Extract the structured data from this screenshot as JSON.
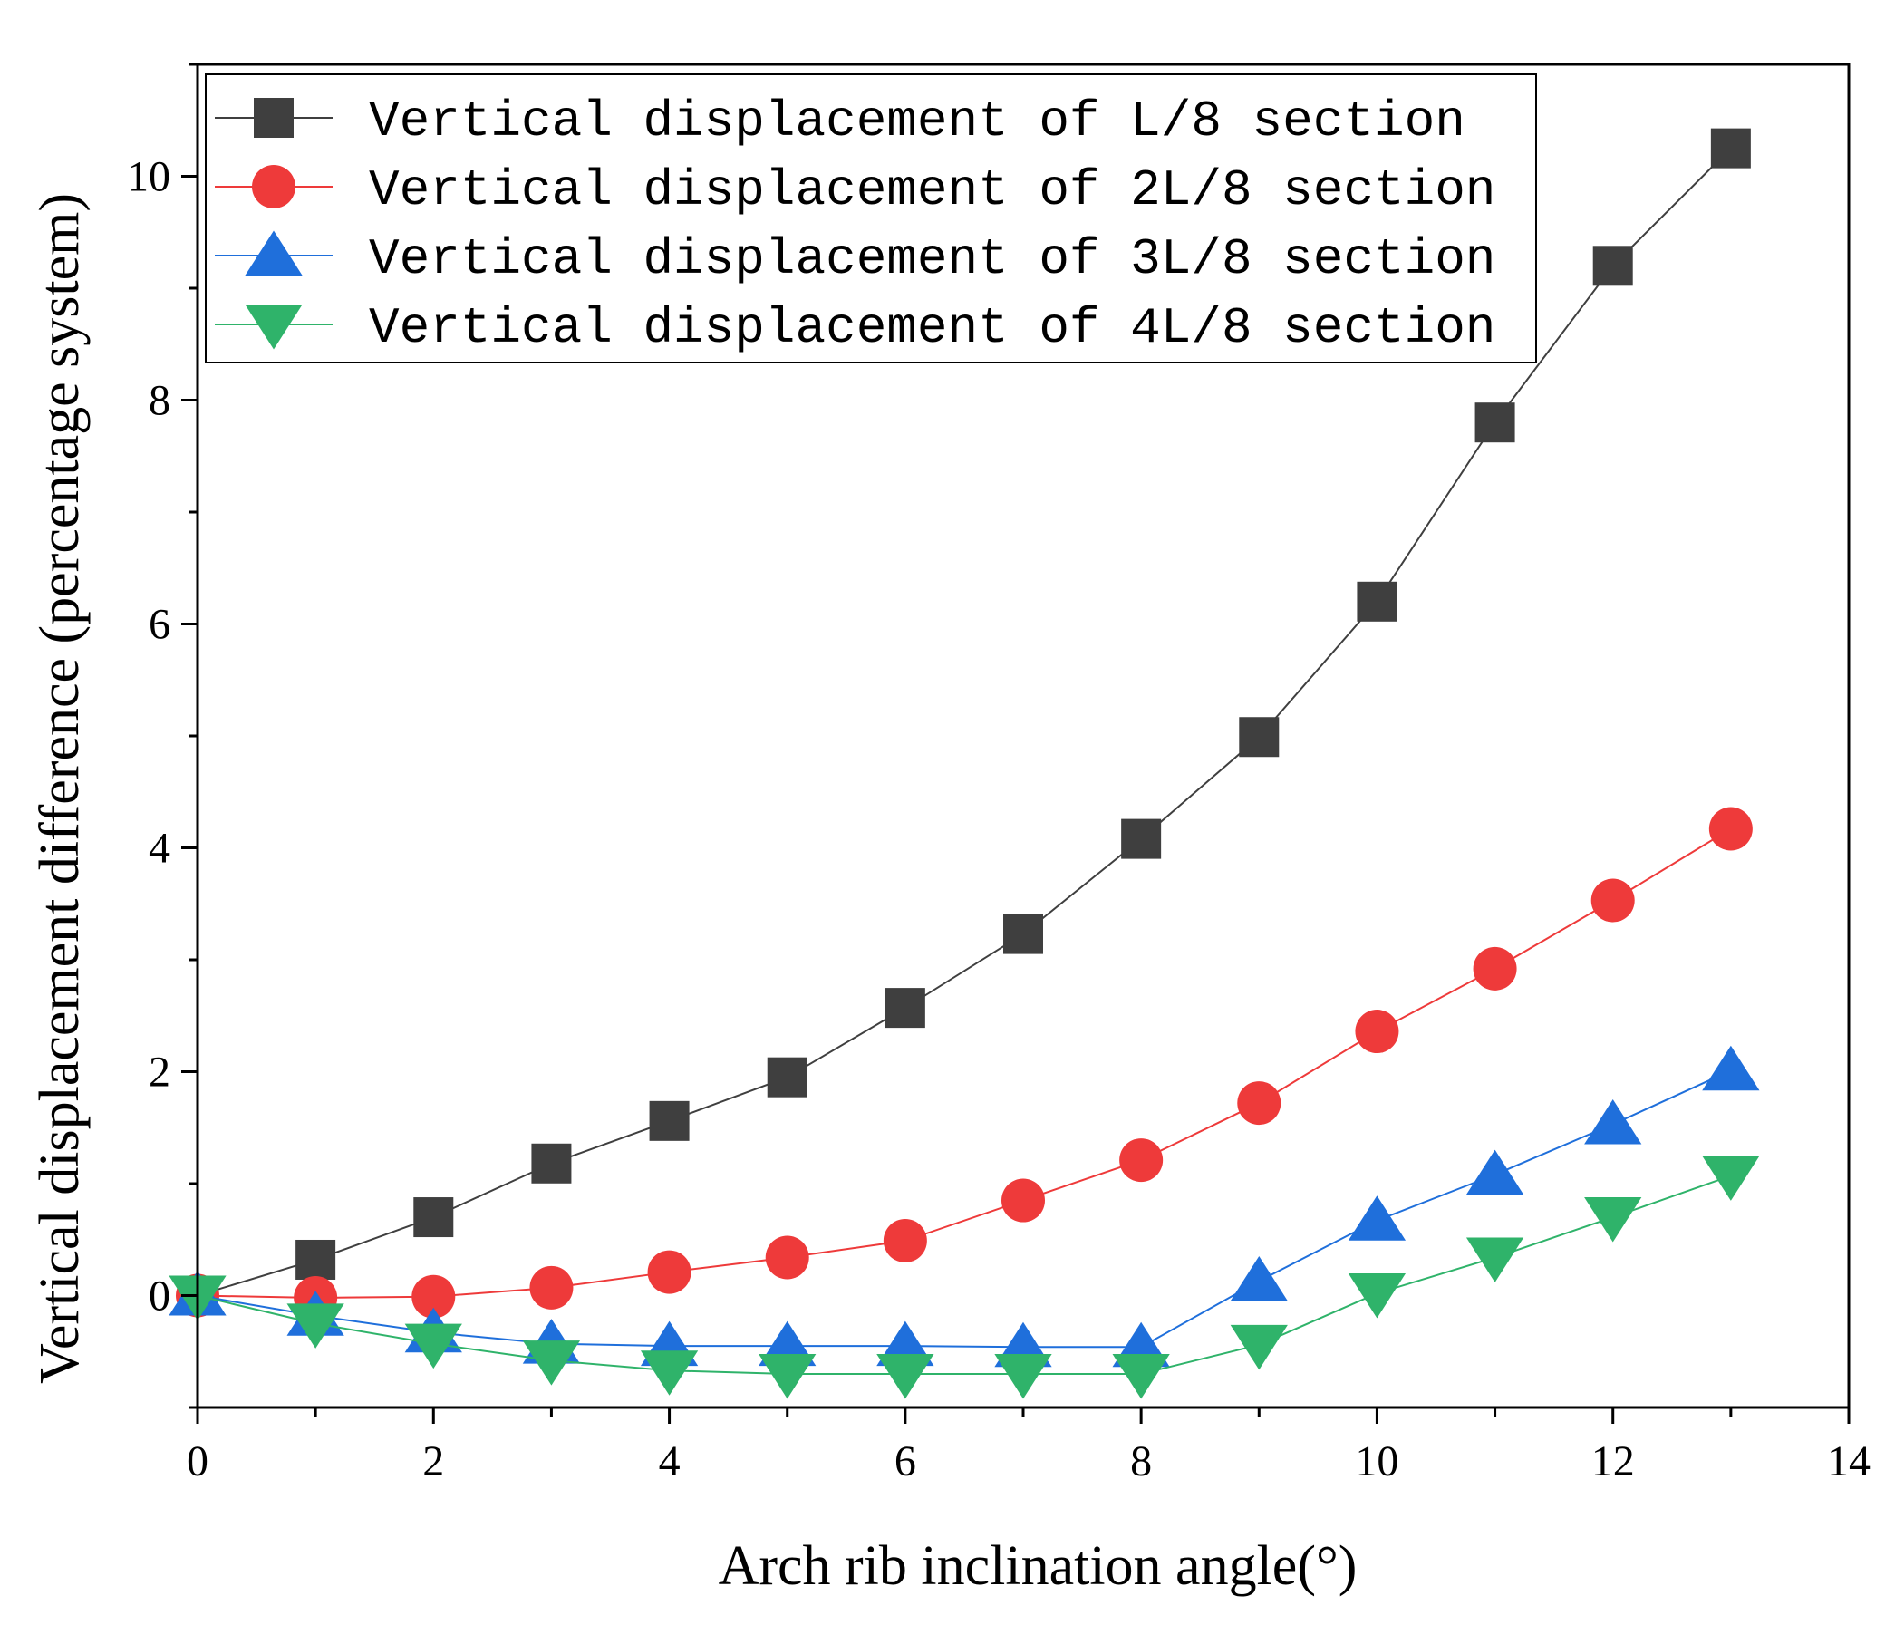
{
  "chart_data": {
    "type": "line",
    "title": "",
    "xlabel": "Arch rib inclination angle(°)",
    "ylabel": "Vertical displacement difference (percentage system)",
    "xlim": [
      0,
      14
    ],
    "ylim": [
      -1,
      11
    ],
    "x_ticks": [
      0,
      2,
      4,
      6,
      8,
      10,
      12,
      14
    ],
    "y_ticks": [
      0,
      2,
      4,
      6,
      8,
      10
    ],
    "x": [
      0,
      1,
      2,
      3,
      4,
      5,
      6,
      7,
      8,
      9,
      10,
      11,
      12,
      13
    ],
    "legend_position": "top-left",
    "series": [
      {
        "name": "Vertical displacement of L/8 section",
        "marker": "square",
        "color": "#3f3f3f",
        "values": [
          0,
          0.32,
          0.7,
          1.18,
          1.56,
          1.95,
          2.57,
          3.23,
          4.08,
          4.99,
          6.2,
          7.8,
          9.2,
          10.25
        ]
      },
      {
        "name": "Vertical displacement of 2L/8 section",
        "marker": "circle",
        "color": "#ee3a3a",
        "values": [
          0,
          -0.02,
          -0.01,
          0.07,
          0.21,
          0.34,
          0.49,
          0.85,
          1.21,
          1.72,
          2.36,
          2.92,
          3.53,
          4.17
        ]
      },
      {
        "name": "Vertical displacement of 3L/8 section",
        "marker": "triangle-up",
        "color": "#1f6fdb",
        "values": [
          0,
          -0.18,
          -0.33,
          -0.43,
          -0.45,
          -0.45,
          -0.45,
          -0.46,
          -0.46,
          0.13,
          0.67,
          1.08,
          1.53,
          2.01
        ]
      },
      {
        "name": "Vertical displacement of 4L/8 section",
        "marker": "triangle-down",
        "color": "#2fb36a",
        "values": [
          0,
          -0.25,
          -0.43,
          -0.58,
          -0.67,
          -0.7,
          -0.7,
          -0.7,
          -0.7,
          -0.44,
          0.02,
          0.34,
          0.7,
          1.07
        ]
      }
    ]
  }
}
